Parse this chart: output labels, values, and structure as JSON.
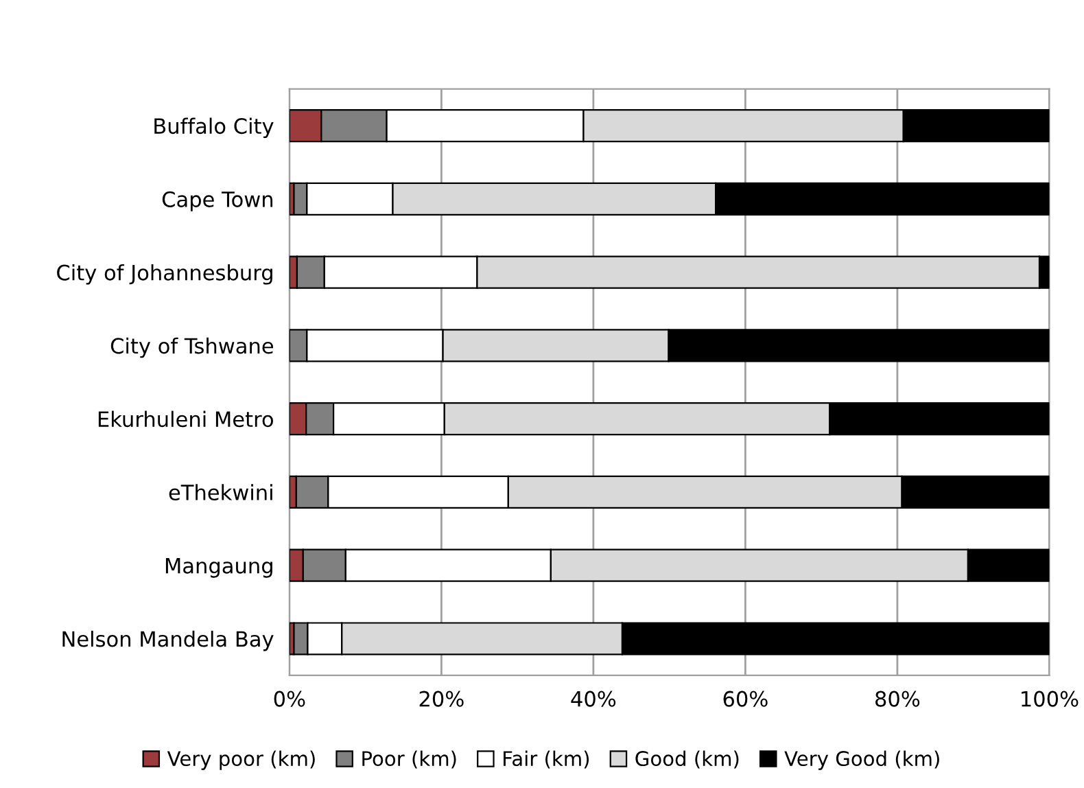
{
  "chart_data": {
    "type": "bar",
    "orientation": "horizontal",
    "stacked": true,
    "categories": [
      "Buffalo City",
      "Cape Town",
      "City of Johannesburg",
      "City of Tshwane",
      "Ekurhuleni Metro",
      "eThekwini",
      "Mangaung",
      "Nelson Mandela Bay"
    ],
    "series": [
      {
        "name": "Very poor (km)",
        "color": "#9b3b3b",
        "values": [
          4.2,
          0.6,
          1.0,
          0,
          2.2,
          0.9,
          1.8,
          0.6
        ]
      },
      {
        "name": "Poor (km)",
        "color": "#808080",
        "values": [
          8.6,
          1.7,
          3.6,
          2.3,
          3.6,
          4.2,
          5.6,
          1.8
        ]
      },
      {
        "name": "Fair (km)",
        "color": "#ffffff",
        "values": [
          25.9,
          11.3,
          20.1,
          17.9,
          14.6,
          23.7,
          27.0,
          4.5
        ]
      },
      {
        "name": "Good (km)",
        "color": "#d9d9d9",
        "values": [
          42.1,
          42.5,
          74.0,
          29.7,
          50.7,
          51.8,
          54.9,
          36.9
        ]
      },
      {
        "name": "Very Good (km)",
        "color": "#000000",
        "values": [
          19.2,
          43.9,
          1.3,
          50.1,
          28.9,
          19.4,
          10.7,
          56.2
        ]
      }
    ],
    "xlim": [
      0,
      100
    ],
    "xticks": [
      {
        "value": 0,
        "label": "0%"
      },
      {
        "value": 20,
        "label": "20%"
      },
      {
        "value": 40,
        "label": "40%"
      },
      {
        "value": 60,
        "label": "60%"
      },
      {
        "value": 80,
        "label": "80%"
      },
      {
        "value": 100,
        "label": "100%"
      }
    ],
    "grid": "x",
    "legend": "bottom"
  }
}
